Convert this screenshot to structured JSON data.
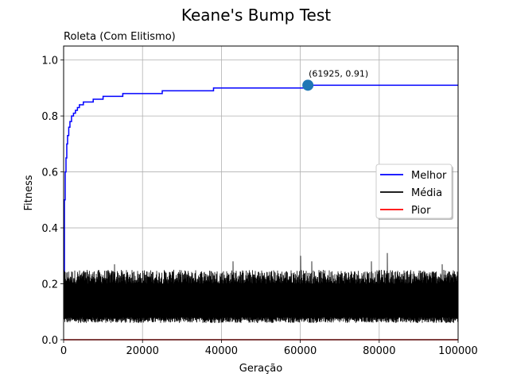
{
  "chart_data": {
    "type": "line",
    "title": "Keane's Bump Test",
    "subtitle": "Roleta (Com Elitismo)",
    "xlabel": "Geração",
    "ylabel": "Fitness",
    "xlim": [
      0,
      100000
    ],
    "ylim": [
      0,
      1.05
    ],
    "x_ticks": [
      0,
      20000,
      40000,
      60000,
      80000,
      100000
    ],
    "y_ticks": [
      0.0,
      0.2,
      0.4,
      0.6,
      0.8,
      1.0
    ],
    "x_tick_labels": [
      "0",
      "20000",
      "40000",
      "60000",
      "80000",
      "100000"
    ],
    "y_tick_labels": [
      "0.0",
      "0.2",
      "0.4",
      "0.6",
      "0.8",
      "1.0"
    ],
    "grid": true,
    "legend_position": "right",
    "series": [
      {
        "name": "Melhor",
        "color": "#0000ff",
        "style": "step",
        "x": [
          0,
          200,
          400,
          600,
          800,
          1000,
          1300,
          1600,
          2000,
          2500,
          3000,
          3500,
          4000,
          5000,
          6000,
          7500,
          10000,
          15000,
          25000,
          38000,
          61925,
          100000
        ],
        "y": [
          0.14,
          0.5,
          0.6,
          0.65,
          0.7,
          0.73,
          0.76,
          0.78,
          0.8,
          0.81,
          0.82,
          0.83,
          0.84,
          0.85,
          0.85,
          0.86,
          0.87,
          0.88,
          0.89,
          0.9,
          0.91,
          0.91
        ]
      },
      {
        "name": "Média",
        "color": "#000000",
        "style": "noise",
        "band_low": [
          0.06,
          0.08
        ],
        "band_high": [
          0.2,
          0.25
        ],
        "spikes": [
          {
            "x": 13000,
            "y": 0.27
          },
          {
            "x": 43000,
            "y": 0.28
          },
          {
            "x": 60000,
            "y": 0.3
          },
          {
            "x": 63000,
            "y": 0.28
          },
          {
            "x": 78000,
            "y": 0.28
          },
          {
            "x": 82000,
            "y": 0.31
          },
          {
            "x": 96000,
            "y": 0.27
          }
        ]
      },
      {
        "name": "Pior",
        "color": "#ff0000",
        "style": "line",
        "x": [
          0,
          100000
        ],
        "y": [
          0.0,
          0.0
        ]
      }
    ],
    "annotation": {
      "x": 61925,
      "y": 0.91,
      "text": "(61925, 0.91)",
      "marker_color": "#1f77b4"
    }
  }
}
